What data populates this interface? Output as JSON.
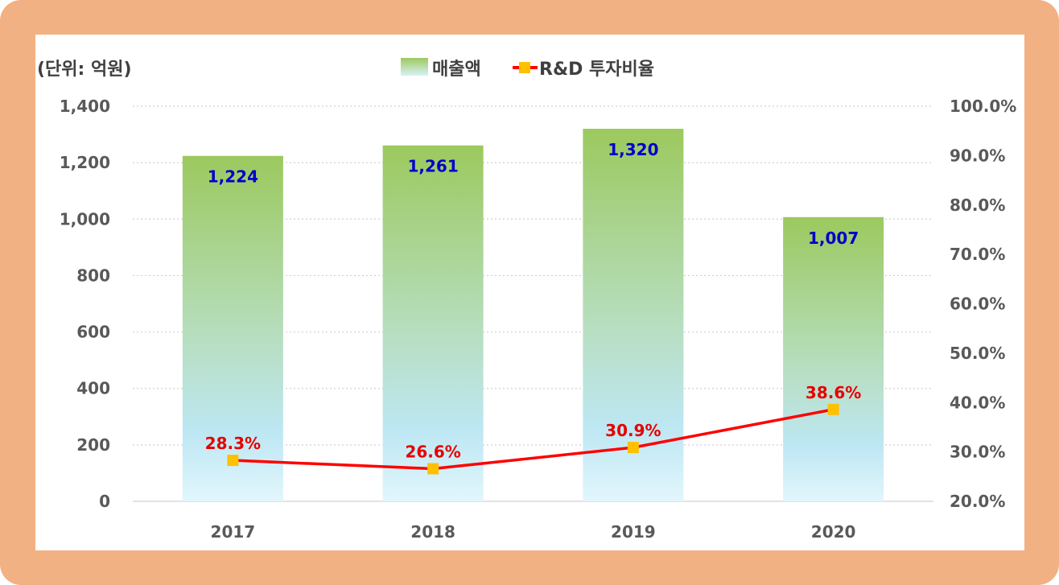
{
  "chart_data": {
    "type": "bar",
    "unit_label": "(단위: 억원)",
    "categories": [
      "2017",
      "2018",
      "2019",
      "2020"
    ],
    "series": [
      {
        "name": "매출액",
        "type": "bar",
        "axis": "left",
        "values": [
          1224,
          1261,
          1320,
          1007
        ],
        "labels": [
          "1,224",
          "1,261",
          "1,320",
          "1,007"
        ]
      },
      {
        "name": "R&D 투자비율",
        "type": "line",
        "axis": "right",
        "values": [
          28.3,
          26.6,
          30.9,
          38.6
        ],
        "labels": [
          "28.3%",
          "26.6%",
          "30.9%",
          "38.6%"
        ]
      }
    ],
    "y_left": {
      "ylim": [
        0,
        1400
      ],
      "ticks": [
        "1,400",
        "1,200",
        "1,000",
        "800",
        "600",
        "400",
        "200",
        "0"
      ]
    },
    "y_right": {
      "ylim": [
        20,
        100
      ],
      "ticks": [
        "100.0%",
        "90.0%",
        "80.0%",
        "70.0%",
        "60.0%",
        "50.0%",
        "40.0%",
        "30.0%",
        "20.0%"
      ]
    },
    "legend": [
      "매출액",
      "R&D 투자비율"
    ],
    "legend_position": "top-center",
    "grid": true,
    "colors": {
      "bar_top": "#9cc95e",
      "bar_bottom": "#dff4fb",
      "line": "#ff0000",
      "marker": "#ffc000",
      "bar_label": "#0000cc",
      "line_label": "#e60000"
    }
  }
}
